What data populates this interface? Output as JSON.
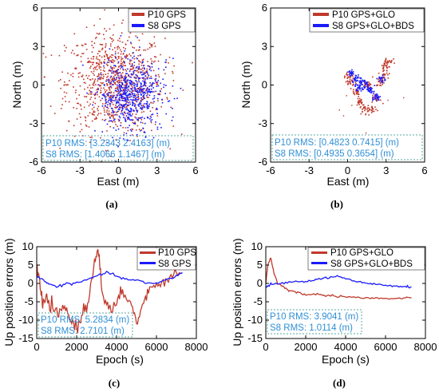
{
  "colors": {
    "p10": "#c0392b",
    "s8": "#1a1aff",
    "rms_text": "#2f8fd6",
    "rms_box": "#5aa9a0"
  },
  "chart_data": [
    {
      "panel": "(a)",
      "type": "scatter",
      "xlabel": "East (m)",
      "ylabel": "North (m)",
      "xlim": [
        -6,
        6
      ],
      "ylim": [
        -6,
        6
      ],
      "xticks": [
        "-6",
        "-3",
        "0",
        "3",
        "6"
      ],
      "yticks": [
        "6",
        "3",
        "0",
        "-3",
        "-6"
      ],
      "series": [
        {
          "name": "P10 GPS",
          "color": "#c0392b",
          "spread_e": 1.9,
          "spread_n": 2.0,
          "center": [
            -0.3,
            0.2
          ]
        },
        {
          "name": "S8   GPS",
          "color": "#1a1aff",
          "spread_e": 1.0,
          "spread_n": 1.4,
          "center": [
            0.5,
            -0.8
          ]
        }
      ],
      "rms_lines": [
        "P10 RMS: [3.2343  2.4163] (m)",
        "S8   RMS: [1.4066  1.1467] (m)"
      ],
      "legend": "top-right"
    },
    {
      "panel": "(b)",
      "type": "scatter",
      "xlabel": "East (m)",
      "ylabel": "North (m)",
      "xlim": [
        -6,
        6
      ],
      "ylim": [
        -6,
        6
      ],
      "xticks": [
        "-6",
        "-3",
        "0",
        "3",
        "6"
      ],
      "yticks": [
        "6",
        "3",
        "0",
        "-3",
        "-6"
      ],
      "series": [
        {
          "name": "P10 GPS+GLO",
          "color": "#c0392b"
        },
        {
          "name": "S8 GPS+GLO+BDS",
          "color": "#1a1aff"
        }
      ],
      "rms_lines": [
        "P10 RMS: [0.4823  0.7415] (m)",
        "S8   RMS: [0.4935  0.3654] (m)"
      ],
      "legend": "top-right"
    },
    {
      "panel": "(c)",
      "type": "line",
      "xlabel": "Epoch (s)",
      "ylabel": "Up position errors (m)",
      "xlim": [
        0,
        8000
      ],
      "ylim": [
        -15,
        10
      ],
      "xticks": [
        "0",
        "2000",
        "4000",
        "6000",
        "8000"
      ],
      "yticks": [
        "10",
        "5",
        "0",
        "-5",
        "-10",
        "-15"
      ],
      "series": [
        {
          "name": "P10 GPS",
          "color": "#c0392b",
          "x": [
            0,
            150,
            300,
            500,
            800,
            1100,
            1400,
            1700,
            2000,
            2300,
            2600,
            2900,
            3100,
            3300,
            3600,
            4000,
            4300,
            4700,
            5000,
            5300,
            5600,
            6000,
            6400,
            6800,
            7200
          ],
          "y": [
            5,
            0,
            -6,
            -4,
            -7,
            -9,
            -6,
            -10,
            -12,
            -8,
            -5,
            7,
            9,
            -4,
            -7,
            -6,
            -2,
            -5,
            -11,
            -6,
            -2,
            -1,
            1,
            2,
            3
          ]
        },
        {
          "name": "S8   GPS",
          "color": "#1a1aff",
          "x": [
            0,
            300,
            600,
            1000,
            1500,
            2000,
            2500,
            3000,
            3500,
            4000,
            4500,
            5000,
            5500,
            6000,
            6500,
            7000,
            7300
          ],
          "y": [
            2,
            1,
            0,
            -1,
            0,
            0,
            1,
            2,
            3,
            2,
            1,
            1,
            0,
            0,
            1,
            2,
            3
          ]
        }
      ],
      "rms_lines": [
        "P10 RMS: 5.2834 (m)",
        "S8   RMS: 2.7101 (m)"
      ],
      "legend": "top-right"
    },
    {
      "panel": "(d)",
      "type": "line",
      "xlabel": "Epoch (s)",
      "ylabel": "Up position errors (m)",
      "xlim": [
        0,
        8000
      ],
      "ylim": [
        -15,
        10
      ],
      "xticks": [
        "0",
        "2000",
        "4000",
        "6000",
        "8000"
      ],
      "yticks": [
        "10",
        "5",
        "0",
        "-5",
        "-10",
        "-15"
      ],
      "series": [
        {
          "name": "P10 GPS+GLO",
          "color": "#c0392b",
          "x": [
            0,
            100,
            250,
            400,
            600,
            900,
            1200,
            1600,
            2000,
            2500,
            3000,
            3500,
            4000,
            4500,
            5000,
            5500,
            6000,
            6500,
            7000,
            7300
          ],
          "y": [
            0,
            5,
            7,
            3,
            0,
            -1,
            -2,
            -2.5,
            -3,
            -3,
            -3.2,
            -3.4,
            -3.6,
            -3.8,
            -4,
            -4,
            -4.2,
            -4.1,
            -4,
            -4
          ]
        },
        {
          "name": "S8 GPS+GLO+BDS",
          "color": "#1a1aff",
          "x": [
            0,
            200,
            500,
            1000,
            1500,
            2000,
            2500,
            3000,
            3500,
            4000,
            4500,
            5000,
            5500,
            6000,
            6500,
            7000,
            7300
          ],
          "y": [
            -1,
            -0.5,
            0,
            0.2,
            0.4,
            0.5,
            1,
            1.5,
            2,
            1.2,
            0.5,
            0,
            -0.3,
            -0.5,
            -0.7,
            -0.9,
            -1
          ]
        }
      ],
      "rms_lines": [
        "P10 RMS: 3.9041 (m)",
        "S8   RMS: 1.0114 (m)"
      ],
      "legend": "top-right"
    }
  ]
}
